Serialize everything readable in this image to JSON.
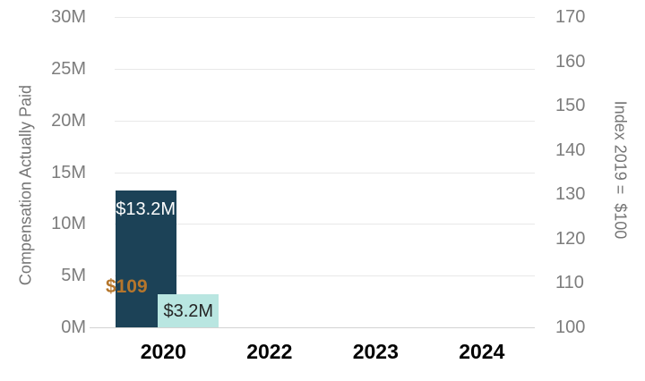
{
  "chart_data": {
    "type": "bar",
    "categories": [
      "2020",
      "2022",
      "2023",
      "2024"
    ],
    "series": [
      {
        "name": "compensation-actually-paid-bar",
        "color": "#1c4257",
        "values": [
          13.2,
          null,
          null,
          null
        ],
        "data_labels": [
          "$13.2M",
          null,
          null,
          null
        ],
        "label_color": "#fdfdfd",
        "axis": "left"
      },
      {
        "name": "secondary-measure-bar",
        "color": "#b9e6e1",
        "values": [
          3.2,
          null,
          null,
          null
        ],
        "data_labels": [
          "$3.2M",
          null,
          null,
          null
        ],
        "label_color": "#252525",
        "axis": "left"
      }
    ],
    "index_points": {
      "name": "index-value",
      "values": [
        109,
        null,
        null,
        null
      ],
      "data_labels": [
        "$109",
        null,
        null,
        null
      ],
      "label_color": "#b5762c",
      "axis": "right"
    },
    "left_axis": {
      "title": "Compensation Actually Paid",
      "min": 0,
      "max": 30,
      "step": 5,
      "tick_labels": [
        "0M",
        "5M",
        "10M",
        "15M",
        "20M",
        "25M",
        "30M"
      ]
    },
    "right_axis": {
      "title": "Index 2019 =  $100",
      "min": 100,
      "max": 170,
      "step": 10,
      "tick_labels": [
        "100",
        "110",
        "120",
        "130",
        "140",
        "150",
        "160",
        "170"
      ]
    },
    "grid": true,
    "legend": "none",
    "colors": {
      "background": "#ffffff",
      "gridline": "#e8e8e8",
      "axis_line": "#d2d2d2",
      "tick_text": "#7d7d7d",
      "x_label_text": "#000000",
      "axis_title_text": "#757575"
    }
  }
}
